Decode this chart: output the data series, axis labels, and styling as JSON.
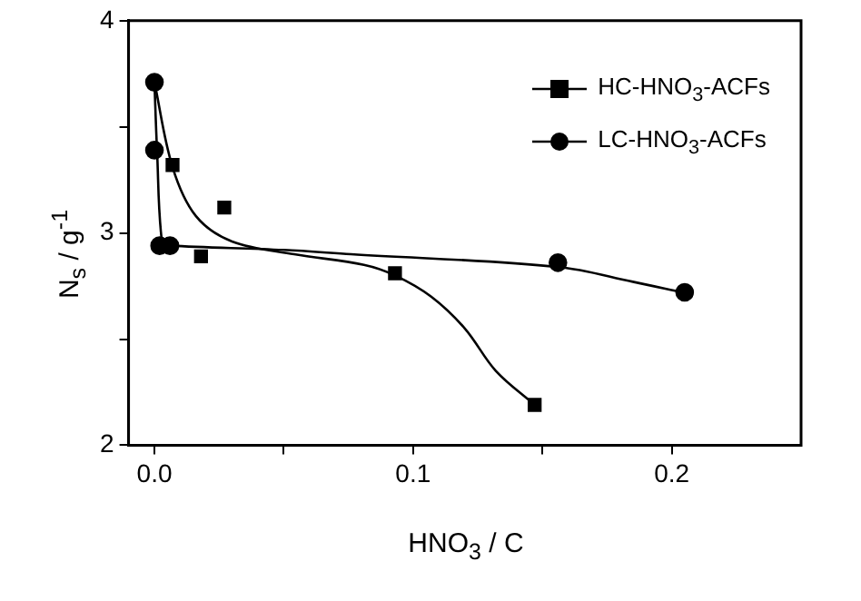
{
  "chart_data": {
    "type": "scatter",
    "xlabel": "HNO$_{3}$ / C",
    "ylabel": "N$_{s}$ / g$^{-1}$",
    "xlim": [
      -0.01,
      0.25
    ],
    "xticks": [
      {
        "value": 0,
        "label": "0.0"
      },
      {
        "value": 0.05,
        "label": null
      },
      {
        "value": 0.1,
        "label": "0.1"
      },
      {
        "value": 0.15,
        "label": null
      },
      {
        "value": 0.2,
        "label": "0.2"
      }
    ],
    "ylim": [
      2,
      4
    ],
    "yticks": [
      2,
      {
        "value": 2.5,
        "label": null
      },
      3,
      {
        "value": 3.5,
        "label": null
      },
      4
    ],
    "grid": false,
    "legend": "top right",
    "series": [
      {
        "name": "HC-HNO$_{3}$-ACFs",
        "type": "scatter",
        "marker": "square",
        "color": "#000000",
        "x": [
          0.007,
          0.018,
          0.027,
          0.093,
          0.147
        ],
        "values": [
          3.32,
          2.89,
          3.12,
          2.81,
          2.19
        ]
      },
      {
        "name": "LC-HNO$_{3}$-ACFs",
        "type": "scatter",
        "marker": "circle",
        "color": "#000000",
        "x": [
          0,
          0,
          0.002,
          0.006,
          0.156,
          0.205
        ],
        "values": [
          3.71,
          3.39,
          2.94,
          2.94,
          2.86,
          2.72
        ]
      },
      {
        "type": "line",
        "marker": "none",
        "color": "#000000",
        "x": [
          0,
          0.007,
          0.016,
          0.03,
          0.054,
          0.081,
          0.093,
          0.107,
          0.12,
          0.132,
          0.147
        ],
        "values": [
          3.71,
          3.31,
          3.08,
          2.96,
          2.9,
          2.85,
          2.8,
          2.7,
          2.55,
          2.35,
          2.19
        ]
      },
      {
        "type": "line",
        "marker": "none",
        "color": "#000000",
        "x": [
          0,
          0.001,
          0.003,
          0.006,
          0.05,
          0.076,
          0.156,
          0.185,
          0.204
        ],
        "values": [
          3.71,
          3.39,
          2.95,
          2.94,
          2.92,
          2.9,
          2.84,
          2.77,
          2.72
        ]
      }
    ]
  }
}
